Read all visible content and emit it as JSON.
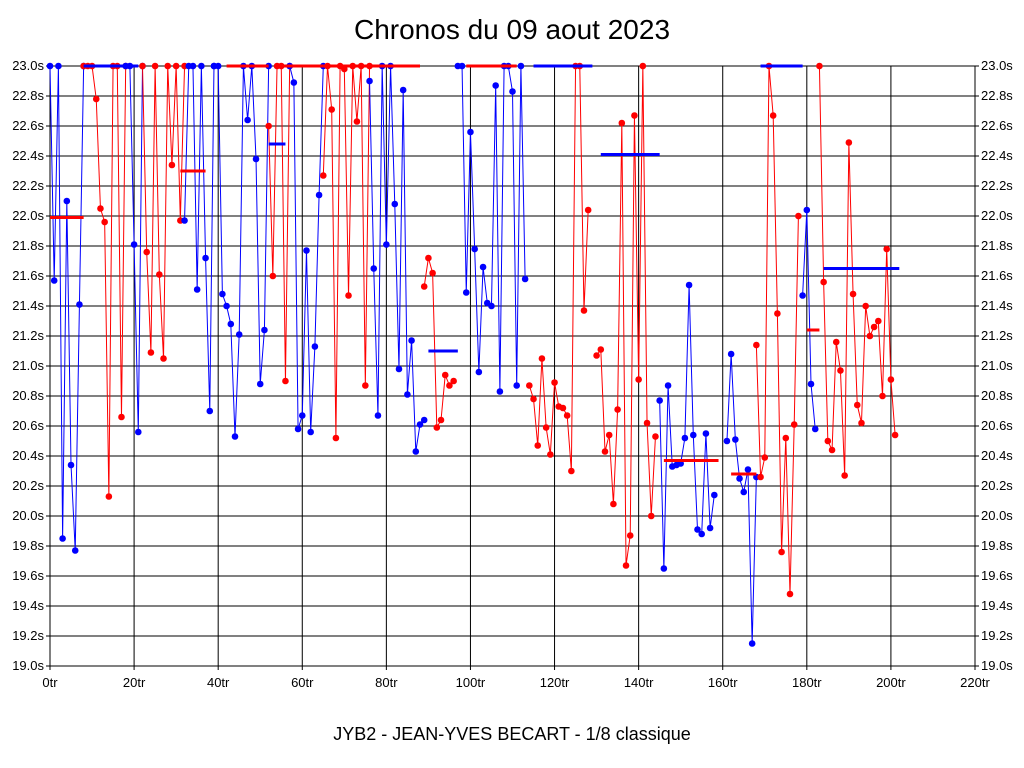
{
  "chart_data": {
    "type": "line",
    "title": "Chronos du 09 aout 2023",
    "footer": "JYB2 - JEAN-YVES BECART - 1/8 classique",
    "xlim": [
      0,
      220
    ],
    "ylim": [
      19.0,
      23.0
    ],
    "x_ticks": [
      0,
      20,
      40,
      60,
      80,
      100,
      120,
      140,
      160,
      180,
      200,
      220
    ],
    "x_tick_labels": [
      "0tr",
      "20tr",
      "40tr",
      "60tr",
      "80tr",
      "100tr",
      "120tr",
      "140tr",
      "160tr",
      "180tr",
      "200tr",
      "220tr"
    ],
    "y_ticks": [
      19.0,
      19.2,
      19.4,
      19.6,
      19.8,
      20.0,
      20.2,
      20.4,
      20.6,
      20.8,
      21.0,
      21.2,
      21.4,
      21.6,
      21.8,
      22.0,
      22.2,
      22.4,
      22.6,
      22.8,
      23.0
    ],
    "y_tick_labels": [
      "19.0s",
      "19.2s",
      "19.4s",
      "19.6s",
      "19.8s",
      "20.0s",
      "20.2s",
      "20.4s",
      "20.6s",
      "20.8s",
      "21.0s",
      "21.2s",
      "21.4s",
      "21.6s",
      "21.8s",
      "22.0s",
      "22.2s",
      "22.4s",
      "22.6s",
      "22.8s",
      "23.0s"
    ],
    "grid": true,
    "colors": {
      "blue": "#0000ff",
      "red": "#ff0000"
    },
    "series": [
      {
        "color": "#0000ff",
        "points": [
          [
            0,
            23.0
          ],
          [
            1,
            21.57
          ],
          [
            2,
            23.0
          ],
          [
            3,
            19.85
          ],
          [
            4,
            22.1
          ],
          [
            5,
            20.34
          ],
          [
            6,
            19.77
          ],
          [
            7,
            21.41
          ],
          [
            8,
            23.0
          ]
        ]
      },
      {
        "color": "#ff0000",
        "points": [
          [
            8,
            23.0
          ],
          [
            9,
            23.0
          ],
          [
            10,
            23.0
          ],
          [
            11,
            22.78
          ],
          [
            12,
            22.05
          ],
          [
            13,
            21.96
          ],
          [
            14,
            20.13
          ],
          [
            15,
            23.0
          ],
          [
            16,
            23.0
          ],
          [
            17,
            20.66
          ],
          [
            18,
            23.0
          ]
        ]
      },
      {
        "color": "#0000ff",
        "points": [
          [
            18,
            23.0
          ],
          [
            19,
            23.0
          ],
          [
            20,
            21.81
          ],
          [
            21,
            20.56
          ],
          [
            22,
            23.0
          ]
        ]
      },
      {
        "color": "#ff0000",
        "points": [
          [
            22,
            23.0
          ],
          [
            23,
            21.76
          ],
          [
            24,
            21.09
          ],
          [
            25,
            23.0
          ],
          [
            26,
            21.61
          ],
          [
            27,
            21.05
          ],
          [
            28,
            23.0
          ],
          [
            29,
            22.34
          ],
          [
            30,
            23.0
          ],
          [
            31,
            21.97
          ],
          [
            32,
            23.0
          ]
        ]
      },
      {
        "color": "#0000ff",
        "points": [
          [
            32,
            21.97
          ],
          [
            33,
            23.0
          ],
          [
            34,
            23.0
          ],
          [
            35,
            21.51
          ],
          [
            36,
            23.0
          ],
          [
            37,
            21.72
          ],
          [
            38,
            20.7
          ],
          [
            39,
            23.0
          ]
        ]
      },
      {
        "color": "#0000ff",
        "points": [
          [
            39,
            23.0
          ],
          [
            40,
            23.0
          ],
          [
            41,
            21.48
          ],
          [
            42,
            21.4
          ],
          [
            43,
            21.28
          ],
          [
            44,
            20.53
          ],
          [
            45,
            21.21
          ],
          [
            46,
            23.0
          ],
          [
            47,
            22.64
          ],
          [
            48,
            23.0
          ],
          [
            49,
            22.38
          ],
          [
            50,
            20.88
          ],
          [
            51,
            21.24
          ],
          [
            52,
            23.0
          ]
        ]
      },
      {
        "color": "#ff0000",
        "points": [
          [
            52,
            22.6
          ],
          [
            53,
            21.6
          ],
          [
            54,
            23.0
          ],
          [
            55,
            23.0
          ],
          [
            56,
            20.9
          ],
          [
            57,
            23.0
          ]
        ]
      },
      {
        "color": "#0000ff",
        "points": [
          [
            57,
            23.0
          ],
          [
            58,
            22.89
          ],
          [
            59,
            20.58
          ],
          [
            60,
            20.67
          ],
          [
            61,
            21.77
          ],
          [
            62,
            20.56
          ],
          [
            63,
            21.13
          ],
          [
            64,
            22.14
          ],
          [
            65,
            23.0
          ]
        ]
      },
      {
        "color": "#ff0000",
        "points": [
          [
            65,
            22.27
          ],
          [
            66,
            23.0
          ],
          [
            67,
            22.71
          ],
          [
            68,
            20.52
          ],
          [
            69,
            23.0
          ],
          [
            70,
            22.98
          ],
          [
            71,
            21.47
          ],
          [
            72,
            23.0
          ],
          [
            73,
            22.63
          ],
          [
            74,
            23.0
          ],
          [
            75,
            20.87
          ],
          [
            76,
            23.0
          ]
        ]
      },
      {
        "color": "#0000ff",
        "points": [
          [
            76,
            22.9
          ],
          [
            77,
            21.65
          ],
          [
            78,
            20.67
          ],
          [
            79,
            23.0
          ],
          [
            80,
            21.81
          ],
          [
            81,
            23.0
          ],
          [
            82,
            22.08
          ],
          [
            83,
            20.98
          ],
          [
            84,
            22.84
          ],
          [
            85,
            20.81
          ],
          [
            86,
            21.17
          ],
          [
            87,
            20.43
          ],
          [
            88,
            20.61
          ],
          [
            89,
            20.64
          ]
        ]
      },
      {
        "color": "#ff0000",
        "points": [
          [
            89,
            21.53
          ],
          [
            90,
            21.72
          ],
          [
            91,
            21.62
          ],
          [
            92,
            20.59
          ],
          [
            93,
            20.64
          ],
          [
            94,
            20.94
          ],
          [
            95,
            20.87
          ],
          [
            96,
            20.9
          ]
        ]
      },
      {
        "color": "#0000ff",
        "points": [
          [
            97,
            23.0
          ],
          [
            98,
            23.0
          ],
          [
            99,
            21.49
          ],
          [
            100,
            22.56
          ],
          [
            101,
            21.78
          ],
          [
            102,
            20.96
          ],
          [
            103,
            21.66
          ],
          [
            104,
            21.42
          ],
          [
            105,
            21.4
          ],
          [
            106,
            22.87
          ],
          [
            107,
            20.83
          ],
          [
            108,
            23.0
          ],
          [
            109,
            23.0
          ],
          [
            110,
            22.83
          ],
          [
            111,
            20.87
          ],
          [
            112,
            23.0
          ],
          [
            113,
            21.58
          ]
        ]
      },
      {
        "color": "#ff0000",
        "points": [
          [
            114,
            20.87
          ],
          [
            115,
            20.78
          ],
          [
            116,
            20.47
          ],
          [
            117,
            21.05
          ],
          [
            118,
            20.59
          ],
          [
            119,
            20.41
          ],
          [
            120,
            20.89
          ],
          [
            121,
            20.73
          ],
          [
            122,
            20.72
          ],
          [
            123,
            20.67
          ],
          [
            124,
            20.3
          ],
          [
            125,
            23.0
          ],
          [
            126,
            23.0
          ],
          [
            127,
            21.37
          ],
          [
            128,
            22.04
          ]
        ]
      },
      {
        "color": "#ff0000",
        "points": [
          [
            130,
            21.07
          ],
          [
            131,
            21.11
          ],
          [
            132,
            20.43
          ],
          [
            133,
            20.54
          ],
          [
            134,
            20.08
          ],
          [
            135,
            20.71
          ],
          [
            136,
            22.62
          ],
          [
            137,
            19.67
          ],
          [
            138,
            19.87
          ],
          [
            139,
            22.67
          ],
          [
            140,
            20.91
          ],
          [
            141,
            23.0
          ],
          [
            142,
            20.62
          ],
          [
            143,
            20.0
          ],
          [
            144,
            20.53
          ]
        ]
      },
      {
        "color": "#0000ff",
        "points": [
          [
            145,
            20.77
          ],
          [
            146,
            19.65
          ],
          [
            147,
            20.87
          ],
          [
            148,
            20.33
          ],
          [
            149,
            20.34
          ],
          [
            150,
            20.35
          ],
          [
            151,
            20.52
          ],
          [
            152,
            21.54
          ],
          [
            153,
            20.54
          ],
          [
            154,
            19.91
          ],
          [
            155,
            19.88
          ],
          [
            156,
            20.55
          ],
          [
            157,
            19.92
          ],
          [
            158,
            20.14
          ]
        ]
      },
      {
        "color": "#0000ff",
        "points": [
          [
            161,
            20.5
          ],
          [
            162,
            21.08
          ],
          [
            163,
            20.51
          ],
          [
            164,
            20.25
          ],
          [
            165,
            20.16
          ],
          [
            166,
            20.31
          ],
          [
            167,
            19.15
          ],
          [
            168,
            20.26
          ]
        ]
      },
      {
        "color": "#ff0000",
        "points": [
          [
            168,
            21.14
          ],
          [
            169,
            20.26
          ],
          [
            170,
            20.39
          ],
          [
            171,
            23.0
          ],
          [
            172,
            22.67
          ],
          [
            173,
            21.35
          ],
          [
            174,
            19.76
          ],
          [
            175,
            20.52
          ],
          [
            176,
            19.48
          ],
          [
            177,
            20.61
          ],
          [
            178,
            22.0
          ]
        ]
      },
      {
        "color": "#0000ff",
        "points": [
          [
            179,
            21.47
          ],
          [
            180,
            22.04
          ],
          [
            181,
            20.88
          ],
          [
            182,
            20.58
          ]
        ]
      },
      {
        "color": "#ff0000",
        "points": [
          [
            183,
            23.0
          ],
          [
            184,
            21.56
          ],
          [
            185,
            20.5
          ],
          [
            186,
            20.44
          ],
          [
            187,
            21.16
          ],
          [
            188,
            20.97
          ],
          [
            189,
            20.27
          ],
          [
            190,
            22.49
          ],
          [
            191,
            21.48
          ],
          [
            192,
            20.74
          ],
          [
            193,
            20.62
          ],
          [
            194,
            21.4
          ],
          [
            195,
            21.2
          ],
          [
            196,
            21.26
          ],
          [
            197,
            21.3
          ],
          [
            198,
            20.8
          ],
          [
            199,
            21.78
          ],
          [
            200,
            20.91
          ],
          [
            201,
            20.54
          ]
        ]
      }
    ],
    "averages": [
      {
        "color": "#ff0000",
        "x": [
          0,
          8
        ],
        "y": 21.99
      },
      {
        "color": "#0000ff",
        "x": [
          8,
          21
        ],
        "y": 23.0
      },
      {
        "color": "#ff0000",
        "x": [
          31,
          37
        ],
        "y": 22.3
      },
      {
        "color": "#ff0000",
        "x": [
          42,
          52
        ],
        "y": 23.0
      },
      {
        "color": "#0000ff",
        "x": [
          52,
          56
        ],
        "y": 22.48
      },
      {
        "color": "#ff0000",
        "x": [
          55,
          65
        ],
        "y": 23.0
      },
      {
        "color": "#ff0000",
        "x": [
          65,
          88
        ],
        "y": 23.0
      },
      {
        "color": "#0000ff",
        "x": [
          90,
          97
        ],
        "y": 21.1
      },
      {
        "color": "#ff0000",
        "x": [
          99,
          111
        ],
        "y": 23.0
      },
      {
        "color": "#0000ff",
        "x": [
          115,
          129
        ],
        "y": 23.0
      },
      {
        "color": "#0000ff",
        "x": [
          131,
          145
        ],
        "y": 22.41
      },
      {
        "color": "#ff0000",
        "x": [
          146,
          159
        ],
        "y": 20.37
      },
      {
        "color": "#ff0000",
        "x": [
          162,
          168
        ],
        "y": 20.28
      },
      {
        "color": "#0000ff",
        "x": [
          169,
          179
        ],
        "y": 23.0
      },
      {
        "color": "#ff0000",
        "x": [
          180,
          183
        ],
        "y": 21.24
      },
      {
        "color": "#0000ff",
        "x": [
          184,
          202
        ],
        "y": 21.65
      }
    ]
  }
}
